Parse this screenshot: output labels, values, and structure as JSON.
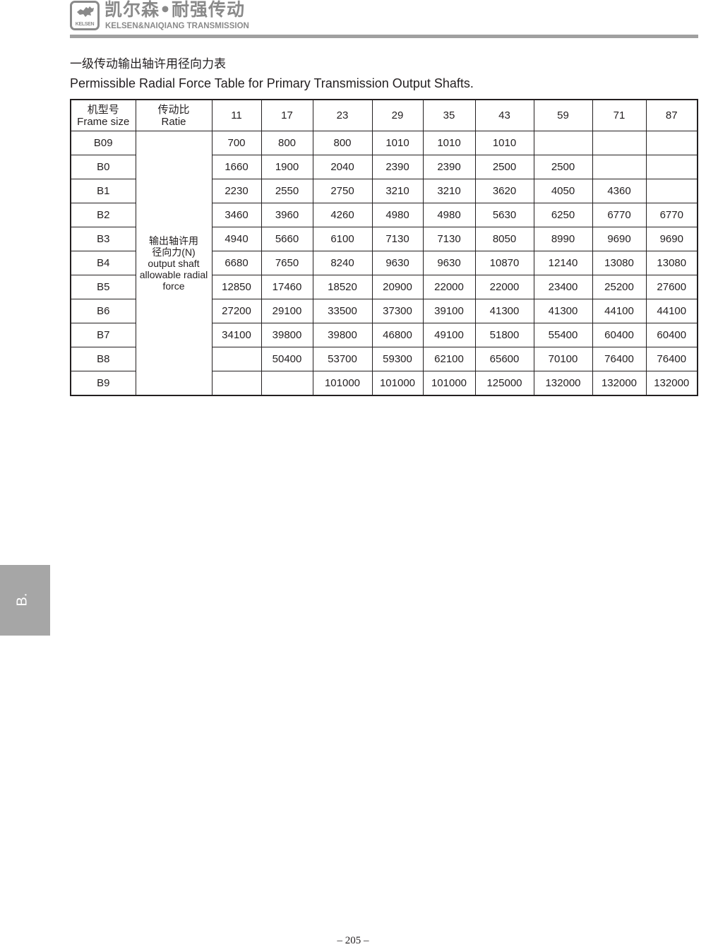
{
  "header": {
    "logo_text": "KELSEN",
    "brand_cn": "凯尔森•耐强传动",
    "brand_en": "KELSEN&NAIQIANG TRANSMISSION"
  },
  "title_cn": "一级传动输出轴许用径向力表",
  "title_en": "Permissible Radial Force Table for  Primary Transmission Output Shafts.",
  "table": {
    "frame_header_cn": "机型号",
    "frame_header_en": "Frame size",
    "ratio_header_cn": "传动比",
    "ratio_header_en": "Ratie",
    "ratios": [
      "11",
      "17",
      "23",
      "29",
      "35",
      "43",
      "59",
      "71",
      "87"
    ],
    "force_label_cn_1": "输出轴许用",
    "force_label_cn_2": "径向力(N)",
    "force_label_en_1": "output shaft",
    "force_label_en_2": "allowable radial",
    "force_label_en_3": "force",
    "rows": [
      {
        "frame": "B09",
        "values": [
          "700",
          "800",
          "800",
          "1010",
          "1010",
          "1010",
          "",
          "",
          ""
        ]
      },
      {
        "frame": "B0",
        "values": [
          "1660",
          "1900",
          "2040",
          "2390",
          "2390",
          "2500",
          "2500",
          "",
          ""
        ]
      },
      {
        "frame": "B1",
        "values": [
          "2230",
          "2550",
          "2750",
          "3210",
          "3210",
          "3620",
          "4050",
          "4360",
          ""
        ]
      },
      {
        "frame": "B2",
        "values": [
          "3460",
          "3960",
          "4260",
          "4980",
          "4980",
          "5630",
          "6250",
          "6770",
          "6770"
        ]
      },
      {
        "frame": "B3",
        "values": [
          "4940",
          "5660",
          "6100",
          "7130",
          "7130",
          "8050",
          "8990",
          "9690",
          "9690"
        ]
      },
      {
        "frame": "B4",
        "values": [
          "6680",
          "7650",
          "8240",
          "9630",
          "9630",
          "10870",
          "12140",
          "13080",
          "13080"
        ]
      },
      {
        "frame": "B5",
        "values": [
          "12850",
          "17460",
          "18520",
          "20900",
          "22000",
          "22000",
          "23400",
          "25200",
          "27600"
        ]
      },
      {
        "frame": "B6",
        "values": [
          "27200",
          "29100",
          "33500",
          "37300",
          "39100",
          "41300",
          "41300",
          "44100",
          "44100"
        ]
      },
      {
        "frame": "B7",
        "values": [
          "34100",
          "39800",
          "39800",
          "46800",
          "49100",
          "51800",
          "55400",
          "60400",
          "60400"
        ]
      },
      {
        "frame": "B8",
        "values": [
          "",
          "50400",
          "53700",
          "59300",
          "62100",
          "65600",
          "70100",
          "76400",
          "76400"
        ]
      },
      {
        "frame": "B9",
        "values": [
          "",
          "",
          "101000",
          "101000",
          "101000",
          "125000",
          "132000",
          "132000",
          "132000"
        ]
      }
    ]
  },
  "side_tab": "B.",
  "page_number": "– 205 –"
}
